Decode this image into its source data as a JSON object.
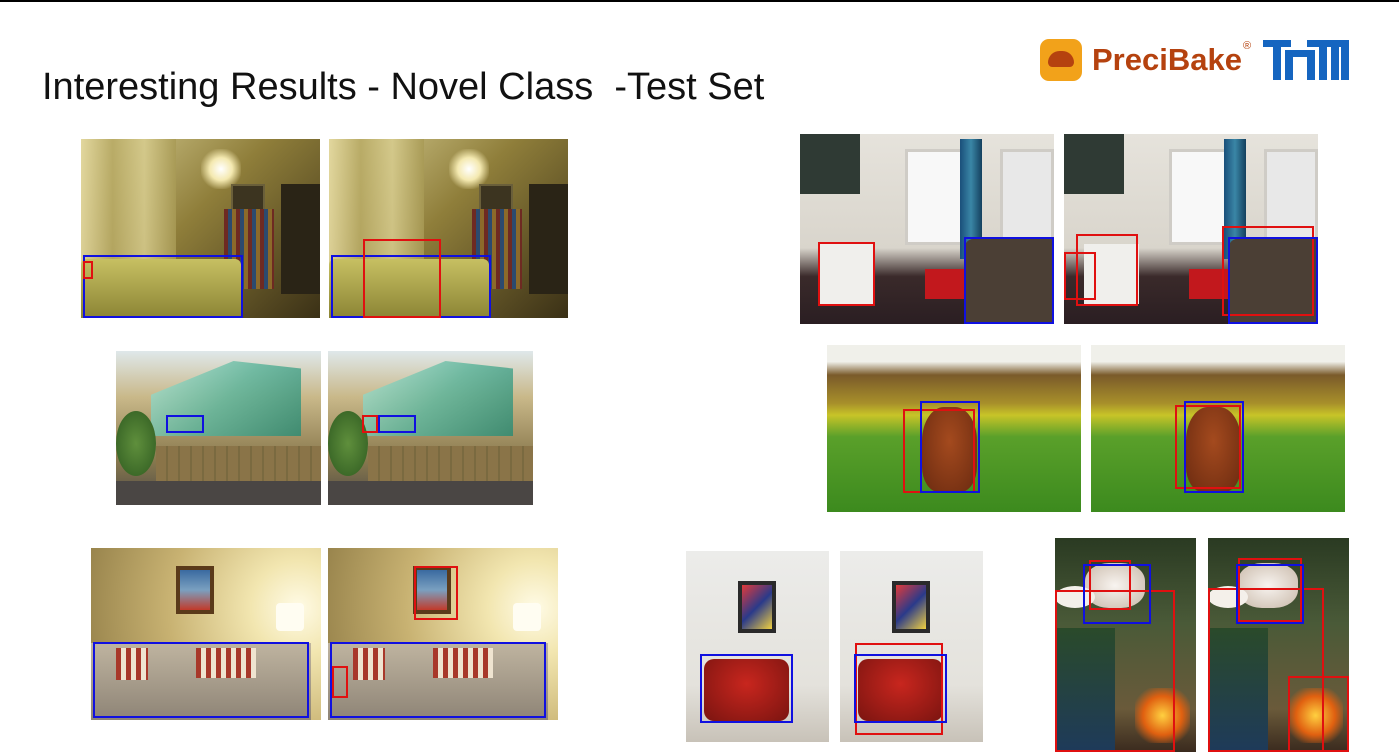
{
  "slide": {
    "title": "Interesting Results - Novel Class  -Test Set"
  },
  "logo": {
    "name": "PreciBake",
    "registered_mark": "®",
    "partner": "TUM"
  },
  "colors": {
    "box_blue": "#1010e0",
    "box_red": "#e01010",
    "logo_orange": "#f2a21a",
    "logo_red": "#b5420f",
    "tum_blue": "#1565c0"
  }
}
